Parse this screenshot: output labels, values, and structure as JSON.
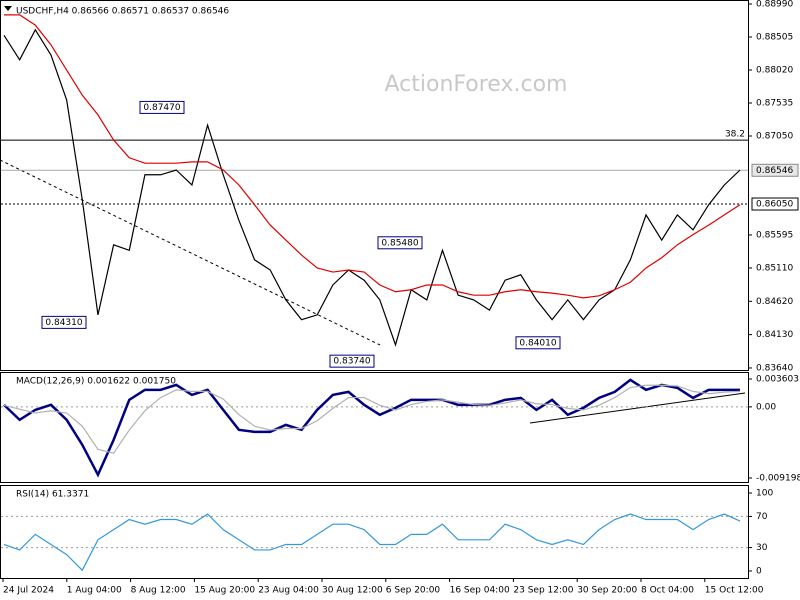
{
  "watermark": "ActionForex.com",
  "x_axis": {
    "labels": [
      "24 Jul 2024",
      "1 Aug 04:00",
      "8 Aug 12:00",
      "15 Aug 20:00",
      "23 Aug 04:00",
      "30 Aug 12:00",
      "6 Sep 20:00",
      "16 Sep 04:00",
      "23 Sep 12:00",
      "30 Sep 20:00",
      "8 Oct 04:00",
      "15 Oct 12:00"
    ]
  },
  "chart_data": [
    {
      "type": "line",
      "title": "USDCHF,H4 0.86566 0.86571 0.86537 0.86546",
      "ylim": [
        0.8361,
        0.89005
      ],
      "yticks": [
        {
          "value": 0.8899,
          "label": "0.88990"
        },
        0.88505,
        {
          "value": 0.8802,
          "label": "0.88020"
        },
        0.87535,
        {
          "value": 0.8705,
          "label": "0.87050"
        },
        0.85595,
        {
          "value": 0.8511,
          "label": "0.85110"
        },
        {
          "value": 0.8462,
          "label": "0.84620"
        },
        {
          "value": 0.8413,
          "label": "0.84130"
        },
        {
          "value": 0.8364,
          "label": "0.83640"
        }
      ],
      "series": [
        {
          "color": "#000000",
          "values": [
            0.8853,
            0.8817,
            0.8861,
            0.8824,
            0.8758,
            0.8611,
            0.8442,
            0.8545,
            0.8537,
            0.8648,
            0.8648,
            0.8655,
            0.8633,
            0.8721,
            0.8648,
            0.8581,
            0.8523,
            0.8508,
            0.8464,
            0.8435,
            0.8442,
            0.8486,
            0.8508,
            0.8493,
            0.8464,
            0.8398,
            0.8479,
            0.8464,
            0.8537,
            0.8471,
            0.8464,
            0.8449,
            0.8493,
            0.8501,
            0.8464,
            0.8435,
            0.8464,
            0.8435,
            0.8464,
            0.8479,
            0.8523,
            0.8589,
            0.8552,
            0.8589,
            0.8567,
            0.8604,
            0.8633,
            0.8655
          ]
        },
        {
          "color": "#e00000",
          "values": [
            0.8883,
            0.8883,
            0.8868,
            0.8839,
            0.8802,
            0.8765,
            0.8736,
            0.8699,
            0.8673,
            0.8665,
            0.8665,
            0.8665,
            0.8667,
            0.8667,
            0.8655,
            0.8633,
            0.8604,
            0.8574,
            0.8552,
            0.853,
            0.8511,
            0.8505,
            0.8508,
            0.8505,
            0.8486,
            0.8476,
            0.8479,
            0.8486,
            0.8486,
            0.8476,
            0.8471,
            0.8471,
            0.8476,
            0.8479,
            0.8476,
            0.8474,
            0.8471,
            0.8467,
            0.847,
            0.8479,
            0.849,
            0.8511,
            0.8526,
            0.8545,
            0.856,
            0.8574,
            0.8589,
            0.8604
          ]
        }
      ],
      "levels": [
        {
          "price": 0.8699,
          "text": "38.2",
          "style": "solid"
        },
        {
          "price": 0.86546,
          "text": "0.86546",
          "style": "gray"
        },
        {
          "price": 0.8605,
          "text": "0.86050",
          "style": "dotted"
        }
      ],
      "annotations": [
        {
          "value": 0.8747,
          "label": "0.87470"
        },
        {
          "value": 0.8431,
          "label": "0.84310"
        },
        {
          "value": 0.8374,
          "label": "0.83740"
        },
        {
          "value": 0.8548,
          "label": "0.85480"
        },
        {
          "value": 0.8401,
          "label": "0.84010"
        }
      ]
    },
    {
      "type": "line",
      "title": "MACD(12,26,9) 0.001622 0.001750",
      "ylim": [
        -0.00972,
        0.00438
      ],
      "yticks": [
        0.003603,
        {
          "value": 0,
          "label": "0.00"
        },
        -0.009198
      ],
      "levels": [
        0
      ],
      "series": [
        {
          "color": "#000080",
          "values": [
            0.00026,
            -0.00168,
            -0.00039,
            0.00026,
            -0.00168,
            -0.00491,
            -0.00879,
            -0.00427,
            0.00091,
            0.0022,
            0.0022,
            0.00284,
            0.00155,
            0.0022,
            -0.00039,
            -0.00297,
            -0.00323,
            -0.00323,
            -0.00233,
            -0.00297,
            -0.00039,
            0.00155,
            0.00194,
            0.00026,
            -0.00103,
            -0.00013,
            0.00091,
            0.00091,
            0.00091,
            0.00026,
            0.00026,
            0.00026,
            0.00091,
            0.00116,
            -0.00039,
            0.00091,
            -0.00103,
            -0.00013,
            0.00116,
            0.00194,
            0.00349,
            0.0022,
            0.00284,
            0.00246,
            0.00116,
            0.0022,
            0.0022,
            0.0022
          ]
        },
        {
          "color": "#b0b0b0",
          "values": [
            0.0002,
            -0.0003,
            -0.0008,
            -0.0005,
            -0.0008,
            -0.0025,
            -0.0055,
            -0.006,
            -0.003,
            -0.0005,
            0.0012,
            0.0022,
            0.002,
            0.002,
            0.001,
            -0.001,
            -0.0025,
            -0.003,
            -0.0028,
            -0.0028,
            -0.0018,
            -0.0002,
            0.0012,
            0.0012,
            0.0002,
            -0.0004,
            0.0003,
            0.0007,
            0.0009,
            0.0006,
            0.0003,
            0.0002,
            0.0005,
            0.0009,
            0.0004,
            0.0003,
            -0.0002,
            -0.0004,
            0.0002,
            0.0012,
            0.0025,
            0.0028,
            0.0028,
            0.0027,
            0.002,
            0.0017,
            0.0019,
            0.002
          ]
        }
      ]
    },
    {
      "type": "line",
      "title": "RSI(14) 61.3371",
      "ylim": [
        -9,
        109
      ],
      "yticks": [
        100,
        70,
        30,
        0
      ],
      "levels": [
        70,
        30
      ],
      "series": [
        {
          "color": "#3399dd",
          "values": [
            34,
            27,
            47,
            34,
            21,
            1,
            40,
            53,
            66,
            60,
            66,
            66,
            60,
            73,
            53,
            40,
            27,
            27,
            34,
            34,
            47,
            60,
            60,
            53,
            34,
            34,
            47,
            47,
            60,
            40,
            40,
            40,
            60,
            53,
            40,
            34,
            40,
            34,
            53,
            66,
            73,
            66,
            66,
            66,
            53,
            66,
            73,
            64
          ]
        }
      ]
    }
  ]
}
